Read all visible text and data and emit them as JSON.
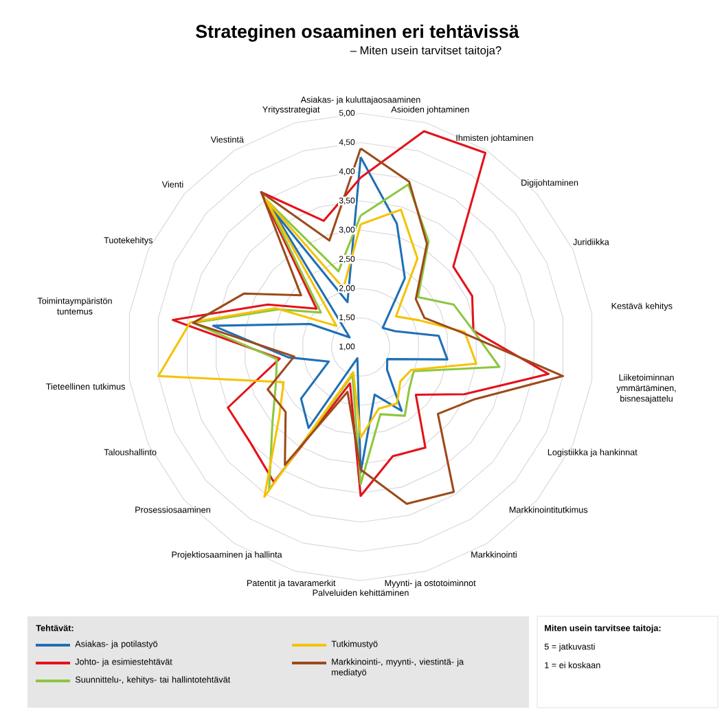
{
  "chart_data": {
    "type": "radar",
    "title": "Strateginen osaaminen eri tehtävissä",
    "subtitle": "– Miten usein tarvitset taitoja?",
    "categories": [
      "Asiakas- ja kuluttajaosaaminen",
      "Asioiden johtaminen",
      "Ihmisten johtaminen",
      "Digijohtaminen",
      "Juridiikka",
      "Kestävä kehitys",
      "Liiketoiminnan ymmärtäminen, bisnesajattelu",
      "Logistiikka ja hankinnat",
      "Markkinointitutkimus",
      "Markkinointi",
      "Myynti- ja ostotoiminnot",
      "Palveluiden kehittäminen",
      "Patentit ja tavaramerkit",
      "Projektiosaaminen ja hallinta",
      "Prosessiosaaminen",
      "Taloushallinto",
      "Tieteellinen tutkimus",
      "Toimintaympäristön tuntemus",
      "Tuotekehitys",
      "Vienti",
      "Viestintä",
      "Yritysstrategiat"
    ],
    "ylim": [
      1,
      5
    ],
    "yticks": [
      {
        "value": 1,
        "label": "1,00"
      },
      {
        "value": 1.5,
        "label": "1,50"
      },
      {
        "value": 2,
        "label": "2,00"
      },
      {
        "value": 2.5,
        "label": "2,50"
      },
      {
        "value": 3,
        "label": "3,00"
      },
      {
        "value": 3.5,
        "label": "3,50"
      },
      {
        "value": 4,
        "label": "4,00"
      },
      {
        "value": 4.5,
        "label": "4,50"
      },
      {
        "value": 5,
        "label": "5,00"
      }
    ],
    "grid": true,
    "legend": "bottom",
    "legend_title": "Tehtävät:",
    "annotations": [
      "Miten usein tarvitsee taitoja:",
      "5 = jatkuvasti",
      "1 = ei koskaan"
    ],
    "series": [
      {
        "name": "Asiakas- ja potilastyö",
        "color": "#1f6fb5",
        "values": [
          4.25,
          3.2,
          2.4,
          1.5,
          1.65,
          2.35,
          2.5,
          1.5,
          1.6,
          2.3,
          1.85,
          3.15,
          1.2,
          2.65,
          2.35,
          1.6,
          2.25,
          3.55,
          1.95,
          1.25,
          3.8,
          1.8
        ]
      },
      {
        "name": "Johto- ja esimiestehtävät",
        "color": "#e3121b",
        "values": [
          3.9,
          4.85,
          4.95,
          3.1,
          3.1,
          2.95,
          4.25,
          2.95,
          2.25,
          3.05,
          2.95,
          3.55,
          1.65,
          3.75,
          3.5,
          3.5,
          2.4,
          4.25,
          2.75,
          2.0,
          4.15,
          3.25
        ]
      },
      {
        "name": "Suunnittelu-, kehitys- tai hallintotehtävät",
        "color": "#8dc63f",
        "values": [
          3.25,
          3.9,
          3.15,
          2.3,
          2.75,
          2.95,
          3.4,
          2.0,
          2.1,
          2.4,
          2.2,
          3.35,
          1.5,
          3.9,
          3.0,
          2.6,
          2.45,
          3.9,
          2.55,
          1.9,
          4.0,
          2.35
        ]
      },
      {
        "name": "Tutkimustyö",
        "color": "#f5c200",
        "values": [
          3.1,
          3.45,
          2.8,
          1.8,
          2.1,
          2.8,
          3.0,
          1.95,
          1.9,
          2.15,
          2.1,
          2.55,
          1.45,
          4.05,
          2.85,
          2.45,
          4.5,
          3.95,
          2.6,
          1.55,
          4.0,
          2.05
        ]
      },
      {
        "name": "Markkinointi-, myynti-, viestintä- ja mediatyö",
        "color": "#9c4a1a",
        "values": [
          4.4,
          3.95,
          3.1,
          2.25,
          2.2,
          2.75,
          4.5,
          3.15,
          2.75,
          3.95,
          3.8,
          3.1,
          1.8,
          3.4,
          2.7,
          2.75,
          2.15,
          3.9,
          3.2,
          2.35,
          4.15,
          2.9
        ]
      }
    ]
  }
}
